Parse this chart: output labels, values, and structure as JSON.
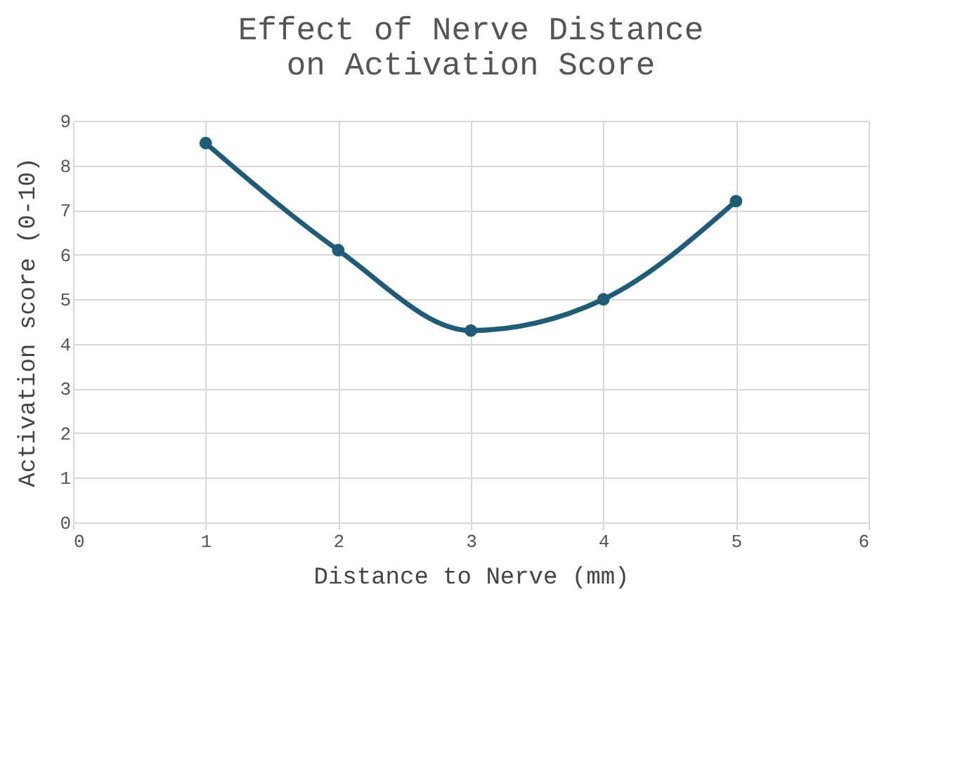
{
  "chart_data": {
    "type": "line",
    "title": [
      "Effect of Nerve Distance",
      "on Activation Score"
    ],
    "xlabel": "Distance to Nerve (mm)",
    "ylabel": "Activation score (0-10)",
    "x": [
      1,
      2,
      3,
      4,
      5
    ],
    "series": [
      {
        "color": "#1f5c78",
        "values": [
          8.5,
          6.1,
          4.3,
          5.0,
          7.2
        ]
      }
    ],
    "xlim": [
      0,
      6
    ],
    "xticks": [
      0,
      1,
      2,
      3,
      4,
      5,
      6
    ],
    "ylim": [
      0,
      9
    ],
    "yticks": [
      0,
      1,
      2,
      3,
      4,
      5,
      6,
      7,
      8,
      9
    ],
    "grid": true,
    "marker": "circle",
    "line_style": "solid"
  }
}
